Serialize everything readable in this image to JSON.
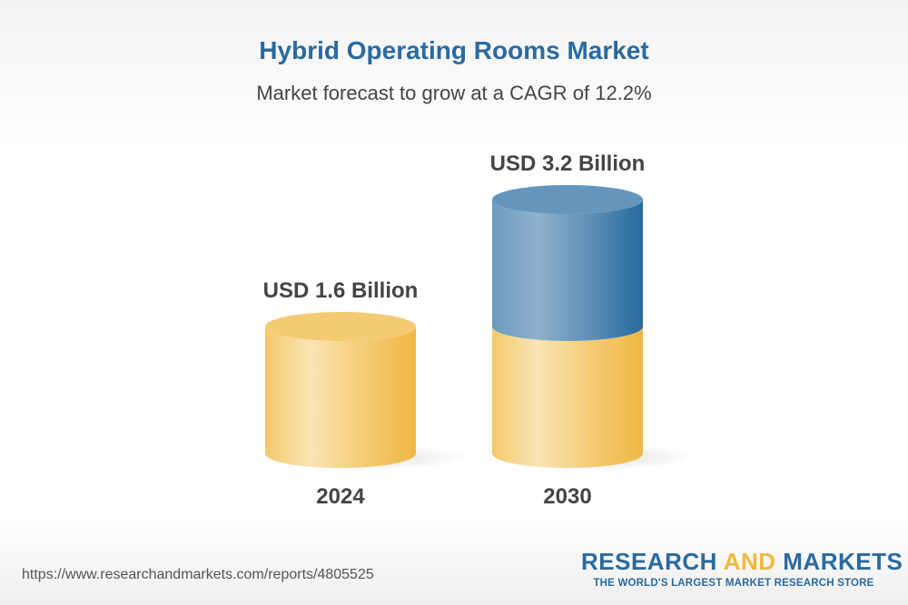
{
  "chart_data": {
    "type": "bar",
    "title": "Hybrid Operating Rooms Market",
    "subtitle": "Market forecast to grow at a CAGR of 12.2%",
    "categories": [
      "2024",
      "2030"
    ],
    "values": [
      1.6,
      3.2
    ],
    "unit": "USD Billion",
    "data_labels": [
      "USD 1.6 Billion",
      "USD 3.2 Billion"
    ],
    "style": "3d-cylinder",
    "colors": {
      "base": "#f2c05a",
      "growth": "#2e6c9f"
    }
  },
  "footer": {
    "url": "https://www.researchandmarkets.com/reports/4805525",
    "logo": {
      "word1": "RESEARCH",
      "word2": "AND",
      "word3": "MARKETS",
      "tagline": "THE WORLD'S LARGEST MARKET RESEARCH STORE"
    }
  }
}
